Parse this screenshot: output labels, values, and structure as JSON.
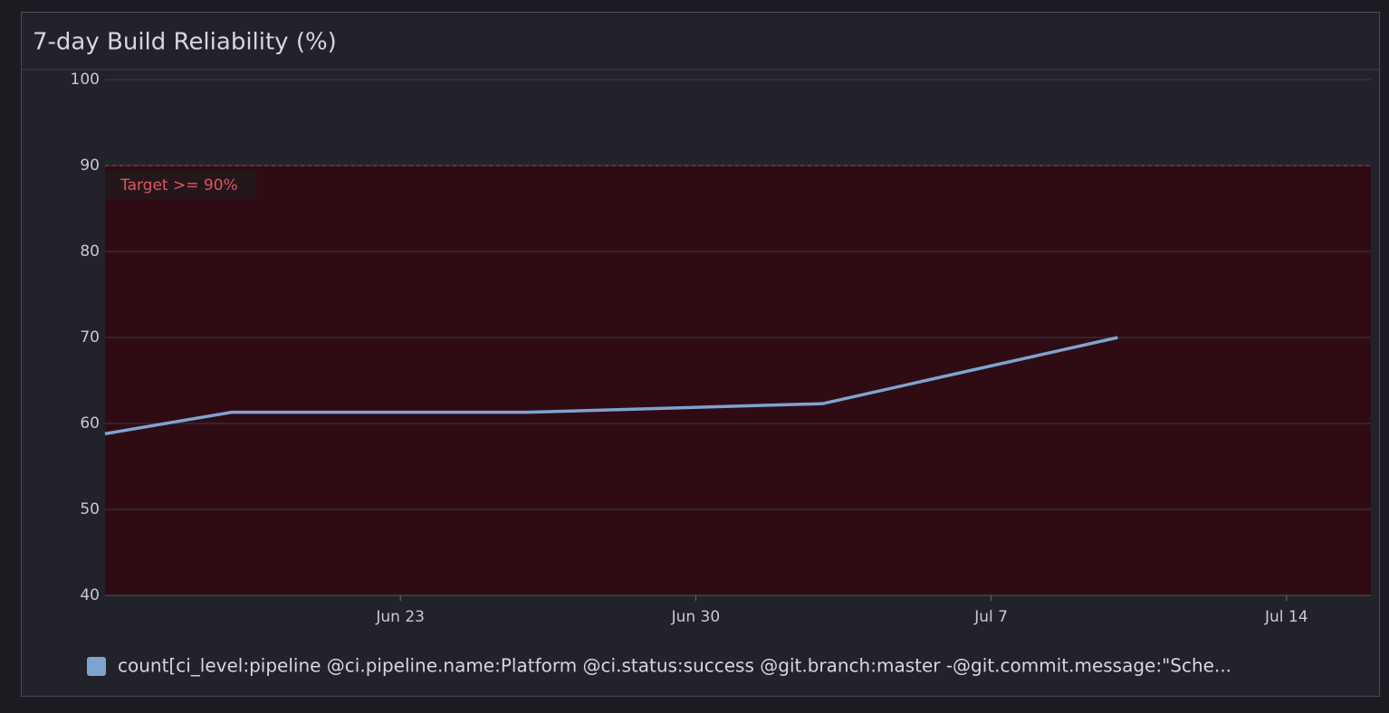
{
  "chart_data": {
    "type": "line",
    "title": "7-day Build Reliability (%)",
    "x": [
      "Jun 16",
      "Jun 19",
      "Jun 26",
      "Jul 3",
      "Jul 10"
    ],
    "xlim": [
      "Jun 16",
      "Jul 16"
    ],
    "xticks": [
      "Jun 23",
      "Jun 30",
      "Jul 7",
      "Jul 14"
    ],
    "series": [
      {
        "name": "count[ci_level:pipeline @ci.pipeline.name:Platform @ci.status:success @git.branch:master -@git.commit.message:\"Sche...",
        "color": "#7fa3d1",
        "values": [
          58.8,
          61.3,
          61.3,
          62.3,
          70
        ]
      }
    ],
    "ylim": [
      40,
      100
    ],
    "yticks": [
      40,
      50,
      60,
      70,
      80,
      90,
      100
    ],
    "grid": true,
    "marker": {
      "label": "Target >= 90%",
      "value": 90,
      "color": "#e05561"
    }
  }
}
